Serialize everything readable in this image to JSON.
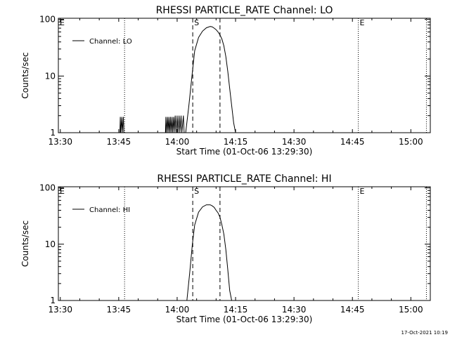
{
  "timestamp": "17-Oct-2021 10:19",
  "chart_data": [
    {
      "type": "line",
      "title": "RHESSI PARTICLE_RATE Channel: LO",
      "xlabel": "Start Time (01-Oct-06 13:29:30)",
      "ylabel": "Counts/sec",
      "y_scale": "log",
      "ylim": [
        1,
        100
      ],
      "xlim_minutes": [
        -0.5,
        95
      ],
      "xticks": [
        "13:30",
        "13:45",
        "14:00",
        "14:15",
        "14:30",
        "14:45",
        "15:00"
      ],
      "xtick_minutes": [
        0,
        15,
        30,
        45,
        60,
        75,
        90
      ],
      "yticks": [
        "1",
        "10",
        "100"
      ],
      "ytick_values": [
        1,
        10,
        100
      ],
      "legend": {
        "label": "Channel: LO",
        "position": "top-left"
      },
      "markers": [
        {
          "label": "E",
          "minute": -0.5,
          "style": "dotted"
        },
        {
          "label": "",
          "minute": 16.5,
          "style": "dotted"
        },
        {
          "label": "S",
          "minute": 34.0,
          "style": "dashed"
        },
        {
          "label": "",
          "minute": 41.0,
          "style": "dashed"
        },
        {
          "label": "E",
          "minute": 76.5,
          "style": "dotted"
        },
        {
          "label": "",
          "minute": 94.0,
          "style": "dotted"
        }
      ],
      "series": [
        {
          "name": "Channel: LO",
          "points": [
            [
              15.3,
              1
            ],
            [
              15.4,
              1.9
            ],
            [
              15.5,
              1
            ],
            [
              15.8,
              1.9
            ],
            [
              15.9,
              1
            ],
            [
              16.2,
              1.9
            ],
            [
              16.3,
              1
            ],
            [
              27.0,
              1
            ],
            [
              27.1,
              1.9
            ],
            [
              27.2,
              1
            ],
            [
              27.5,
              1.9
            ],
            [
              27.6,
              1
            ],
            [
              27.9,
              1.9
            ],
            [
              28.0,
              1
            ],
            [
              28.3,
              1.9
            ],
            [
              28.4,
              1
            ],
            [
              28.7,
              1.9
            ],
            [
              28.8,
              1
            ],
            [
              29.1,
              1.9
            ],
            [
              29.2,
              1
            ],
            [
              29.5,
              2.0
            ],
            [
              29.7,
              1
            ],
            [
              30.0,
              2.0
            ],
            [
              30.2,
              1
            ],
            [
              30.5,
              2.0
            ],
            [
              30.7,
              1
            ],
            [
              31.0,
              2.0
            ],
            [
              31.2,
              1
            ],
            [
              31.6,
              2.0
            ],
            [
              31.8,
              1
            ],
            [
              32.2,
              1
            ],
            [
              33.0,
              3
            ],
            [
              33.8,
              10
            ],
            [
              34.5,
              28
            ],
            [
              35.5,
              48
            ],
            [
              36.5,
              62
            ],
            [
              37.5,
              71
            ],
            [
              38.5,
              75
            ],
            [
              39.0,
              74
            ],
            [
              39.5,
              70
            ],
            [
              40.0,
              66
            ],
            [
              40.5,
              60
            ],
            [
              41.0,
              53
            ],
            [
              41.5,
              45
            ],
            [
              42.0,
              34
            ],
            [
              42.5,
              22
            ],
            [
              43.0,
              12
            ],
            [
              43.5,
              6
            ],
            [
              44.0,
              3
            ],
            [
              44.5,
              1.5
            ],
            [
              45.0,
              1
            ]
          ]
        }
      ]
    },
    {
      "type": "line",
      "title": "RHESSI PARTICLE_RATE Channel: HI",
      "xlabel": "Start Time (01-Oct-06 13:29:30)",
      "ylabel": "Counts/sec",
      "y_scale": "log",
      "ylim": [
        1,
        100
      ],
      "xlim_minutes": [
        -0.5,
        95
      ],
      "xticks": [
        "13:30",
        "13:45",
        "14:00",
        "14:15",
        "14:30",
        "14:45",
        "15:00"
      ],
      "xtick_minutes": [
        0,
        15,
        30,
        45,
        60,
        75,
        90
      ],
      "yticks": [
        "1",
        "10",
        "100"
      ],
      "ytick_values": [
        1,
        10,
        100
      ],
      "legend": {
        "label": "Channel: HI",
        "position": "top-left"
      },
      "markers": [
        {
          "label": "E",
          "minute": -0.5,
          "style": "dotted"
        },
        {
          "label": "",
          "minute": 16.5,
          "style": "dotted"
        },
        {
          "label": "S",
          "minute": 34.0,
          "style": "dashed"
        },
        {
          "label": "",
          "minute": 41.0,
          "style": "dashed"
        },
        {
          "label": "E",
          "minute": 76.5,
          "style": "dotted"
        },
        {
          "label": "",
          "minute": 94.0,
          "style": "dotted"
        }
      ],
      "series": [
        {
          "name": "Channel: HI",
          "points": [
            [
              32.5,
              1
            ],
            [
              33.2,
              3
            ],
            [
              33.9,
              10
            ],
            [
              34.5,
              22
            ],
            [
              35.5,
              37
            ],
            [
              36.5,
              46
            ],
            [
              37.5,
              50
            ],
            [
              38.5,
              50
            ],
            [
              39.0,
              48
            ],
            [
              39.5,
              45
            ],
            [
              40.0,
              40
            ],
            [
              40.5,
              36
            ],
            [
              41.0,
              30
            ],
            [
              41.5,
              22
            ],
            [
              42.0,
              15
            ],
            [
              42.5,
              8
            ],
            [
              43.0,
              3.5
            ],
            [
              43.5,
              1.5
            ],
            [
              44.0,
              1
            ]
          ]
        }
      ]
    }
  ]
}
